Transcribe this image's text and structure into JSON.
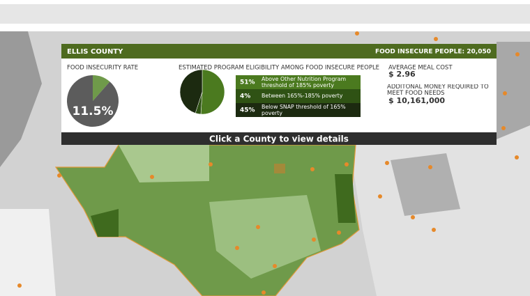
{
  "header": {
    "county": "ELLIS COUNTY",
    "food_insecure_people": "FOOD INSECURE PEOPLE: 20,050"
  },
  "rate": {
    "label": "FOOD INSECURITY RATE",
    "value": 11.5,
    "value_label": "11.5%"
  },
  "eligibility": {
    "label": "ESTIMATED PROGRAM ELIGIBILITY AMONG FOOD INSECURE PEOPLE",
    "rows": [
      {
        "value": 51,
        "value_label": "51%",
        "text": "Above Other Nutrition Program threshold of 185% poverty",
        "color": "#4b7a1f"
      },
      {
        "value": 4,
        "value_label": "4%",
        "text": "Between 165%-185% poverty",
        "color": "#2f5214"
      },
      {
        "value": 45,
        "value_label": "45%",
        "text": "Below SNAP threshold of 165% poverty",
        "color": "#1c2a10"
      }
    ]
  },
  "meal_cost": {
    "label": "AVERAGE MEAL COST",
    "value": "$ 2.96"
  },
  "additional": {
    "label": "ADDITONAL MONEY REQUIRED TO MEET FOOD NEEDS",
    "value": "$ 10,161,000"
  },
  "footer": "Click a County to view details"
}
